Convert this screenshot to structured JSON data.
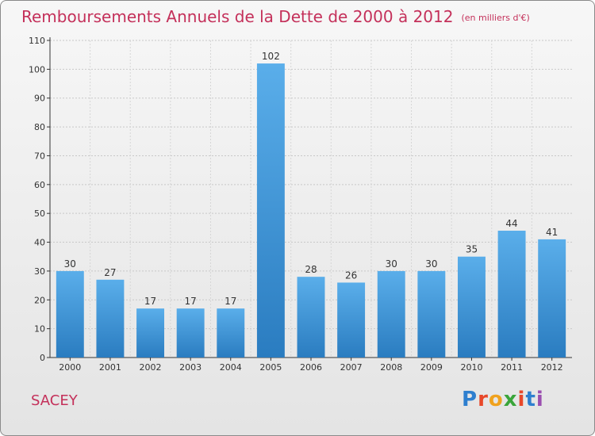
{
  "header": {
    "title": "Remboursements Annuels de la Dette de 2000 à 2012",
    "subtitle": "(en milliers d'€)"
  },
  "footer": {
    "city": "SACEY",
    "logo": {
      "letters": [
        "P",
        "r",
        "o",
        "x",
        "i",
        "t",
        "i"
      ],
      "colors": [
        "#2e7fcf",
        "#e8482a",
        "#f0a21e",
        "#3aa53a",
        "#e8482a",
        "#2e7fcf",
        "#9b4fb0"
      ]
    }
  },
  "colors": {
    "bar_top": "#5aaeea",
    "bar_bottom": "#2a7cc0",
    "title": "#c4305a"
  },
  "chart_data": {
    "type": "bar",
    "categories": [
      "2000",
      "2001",
      "2002",
      "2003",
      "2004",
      "2005",
      "2006",
      "2007",
      "2008",
      "2009",
      "2010",
      "2011",
      "2012"
    ],
    "values": [
      30,
      27,
      17,
      17,
      17,
      102,
      28,
      26,
      30,
      30,
      35,
      44,
      41
    ],
    "ylim": [
      0,
      110
    ],
    "yticks": [
      0,
      10,
      20,
      30,
      40,
      50,
      60,
      70,
      80,
      90,
      100,
      110
    ],
    "grid": true,
    "data_labels": true
  }
}
